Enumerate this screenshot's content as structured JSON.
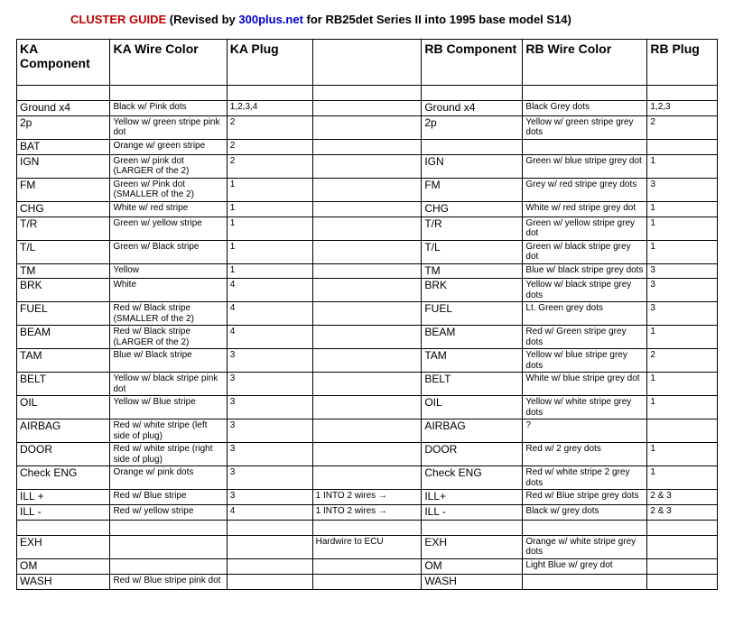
{
  "title": {
    "main": "CLUSTER GUIDE ",
    "paren_open": "(Revised by ",
    "link": "300plus.net",
    "paren_rest": " for RB25det Series II into 1995 base model S14)"
  },
  "headers": [
    "KA Component",
    "KA Wire Color",
    "KA Plug",
    "",
    "RB Component",
    "RB Wire Color",
    "RB Plug"
  ],
  "rows": [
    {
      "blank": true
    },
    {
      "c": [
        "Ground x4",
        "Black w/ Pink dots",
        "1,2,3,4",
        "",
        "Ground x4",
        "Black Grey dots",
        "1,2,3"
      ]
    },
    {
      "c": [
        "2p",
        "Yellow w/ green stripe pink dot",
        "2",
        "",
        "2p",
        "Yellow w/ green stripe grey dots",
        "2"
      ]
    },
    {
      "c": [
        "BAT",
        "Orange w/ green stripe",
        "2",
        "",
        "",
        "",
        ""
      ]
    },
    {
      "c": [
        "IGN",
        "Green w/ pink dot (LARGER of the 2)",
        "2",
        "",
        "IGN",
        "Green w/ blue stripe grey dot",
        "1"
      ]
    },
    {
      "c": [
        "FM",
        "Green w/ Pink dot (SMALLER of the 2)",
        "1",
        "",
        "FM",
        "Grey w/ red stripe grey dots",
        "3"
      ]
    },
    {
      "c": [
        "CHG",
        "White w/ red stripe",
        "1",
        "",
        "CHG",
        "White w/ red stripe grey dot",
        "1"
      ]
    },
    {
      "c": [
        "T/R",
        "Green w/ yellow stripe",
        "1",
        "",
        "T/R",
        "Green w/ yellow stripe grey dot",
        "1"
      ]
    },
    {
      "c": [
        "T/L",
        "Green w/ Black stripe",
        "1",
        "",
        "T/L",
        "Green w/ black stripe grey dot",
        "1"
      ]
    },
    {
      "c": [
        "TM",
        "Yellow",
        "1",
        "",
        "TM",
        "Blue w/ black stripe grey dots",
        "3"
      ]
    },
    {
      "c": [
        "BRK",
        "White",
        "4",
        "",
        "BRK",
        "Yellow w/ black stripe grey dots",
        "3"
      ]
    },
    {
      "c": [
        "FUEL",
        "Red w/ Black stripe (SMALLER of the 2)",
        "4",
        "",
        "FUEL",
        "Lt. Green grey dots",
        "3"
      ]
    },
    {
      "c": [
        "BEAM",
        "Red w/ Black stripe (LARGER of the 2)",
        "4",
        "",
        "BEAM",
        "Red w/ Green stripe grey dots",
        "1"
      ]
    },
    {
      "c": [
        "TAM",
        "Blue w/ Black stripe",
        "3",
        "",
        "TAM",
        "Yellow w/ blue stripe grey dots",
        "2"
      ]
    },
    {
      "c": [
        "BELT",
        "Yellow w/ black stripe pink dot",
        "3",
        "",
        "BELT",
        "White w/ blue stripe grey dot",
        "1"
      ]
    },
    {
      "c": [
        "OIL",
        "Yellow w/ Blue stripe",
        "3",
        "",
        "OIL",
        "Yellow w/ white stripe grey dots",
        "1"
      ]
    },
    {
      "c": [
        "AIRBAG",
        "Red w/ white stripe (left side of plug)",
        "3",
        "",
        "AIRBAG",
        "?",
        ""
      ]
    },
    {
      "c": [
        "DOOR",
        "Red w/ white stripe (right side of plug)",
        "3",
        "",
        "DOOR",
        "Red w/ 2 grey dots",
        "1"
      ]
    },
    {
      "c": [
        "Check ENG",
        "Orange w/ pink dots",
        "3",
        "",
        "Check ENG",
        "Red w/ white stripe 2 grey dots",
        "1"
      ]
    },
    {
      "c": [
        "ILL +",
        "Red w/ Blue stripe",
        "3",
        "1 INTO 2 wires →",
        "ILL+",
        "Red w/ Blue stripe grey dots",
        "2 & 3"
      ]
    },
    {
      "c": [
        "ILL -",
        "Red w/ yellow stripe",
        "4",
        "1 INTO 2 wires →",
        "ILL -",
        "Black w/ grey dots",
        "2 & 3"
      ]
    },
    {
      "blank": true
    },
    {
      "c": [
        "EXH",
        "",
        "",
        "Hardwire to ECU",
        "EXH",
        "Orange w/ white stripe grey dots",
        ""
      ]
    },
    {
      "c": [
        "OM",
        "",
        "",
        "",
        "OM",
        "Light Blue w/ grey dot",
        ""
      ]
    },
    {
      "c": [
        "WASH",
        "Red w/ Blue stripe pink dot",
        "",
        "",
        "WASH",
        "",
        ""
      ]
    }
  ]
}
